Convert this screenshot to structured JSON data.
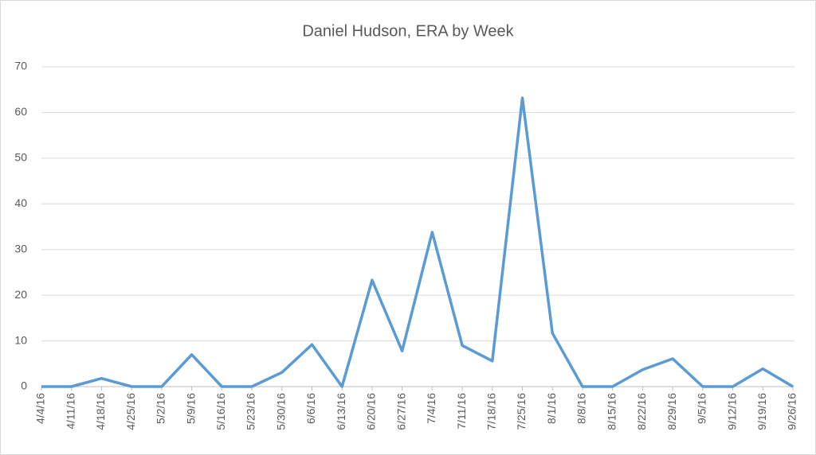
{
  "chart_data": {
    "type": "line",
    "title": "Daniel Hudson, ERA by Week",
    "categories": [
      "4/4/16",
      "4/11/16",
      "4/18/16",
      "4/25/16",
      "5/2/16",
      "5/9/16",
      "5/16/16",
      "5/23/16",
      "5/30/16",
      "6/6/16",
      "6/13/16",
      "6/20/16",
      "6/27/16",
      "7/4/16",
      "7/11/16",
      "7/18/16",
      "7/25/16",
      "8/1/16",
      "8/8/16",
      "8/15/16",
      "8/22/16",
      "8/29/16",
      "9/5/16",
      "9/12/16",
      "9/19/16",
      "9/26/16"
    ],
    "series": [
      {
        "name": "ERA",
        "color": "#5b9bd5",
        "values": [
          0,
          0,
          1.8,
          0,
          0,
          7.0,
          0,
          0,
          3.1,
          9.2,
          0,
          23.3,
          7.8,
          33.8,
          9.0,
          5.6,
          63.2,
          11.7,
          0,
          0,
          3.7,
          6.1,
          0,
          0,
          3.9,
          0
        ]
      }
    ],
    "ylim": [
      0,
      70
    ],
    "yticks": [
      0,
      10,
      20,
      30,
      40,
      50,
      60,
      70
    ],
    "grid": true
  }
}
